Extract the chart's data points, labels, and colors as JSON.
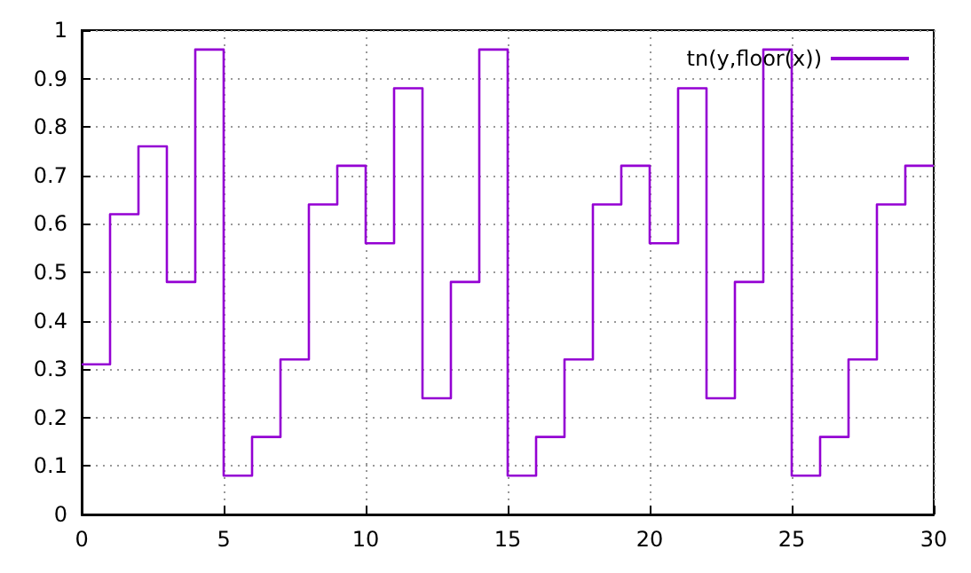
{
  "chart_data": {
    "type": "step",
    "x": [
      0,
      1,
      2,
      3,
      4,
      5,
      6,
      7,
      8,
      9,
      10,
      11,
      12,
      13,
      14,
      15,
      16,
      17,
      18,
      19,
      20,
      21,
      22,
      23,
      24,
      25,
      26,
      27,
      28,
      29,
      30
    ],
    "series": [
      {
        "name": "tn(y,floor(x))",
        "color": "#9400d3",
        "values": [
          0.31,
          0.62,
          0.76,
          0.48,
          0.96,
          0.08,
          0.16,
          0.32,
          0.64,
          0.72,
          0.56,
          0.88,
          0.24,
          0.48,
          0.96,
          0.08,
          0.16,
          0.32,
          0.64,
          0.72,
          0.56,
          0.88,
          0.24,
          0.48,
          0.96,
          0.08,
          0.16,
          0.32,
          0.64,
          0.72,
          0.72
        ]
      }
    ],
    "xlim": [
      0,
      30
    ],
    "xticks": [
      0,
      5,
      10,
      15,
      20,
      25,
      30
    ],
    "ylim": [
      0,
      1
    ],
    "yticks": [
      0,
      0.1,
      0.2,
      0.3,
      0.4,
      0.5,
      0.6,
      0.7,
      0.8,
      0.9,
      1
    ],
    "grid": true,
    "legend": "top right",
    "marker": "none",
    "line_style": "solid"
  }
}
